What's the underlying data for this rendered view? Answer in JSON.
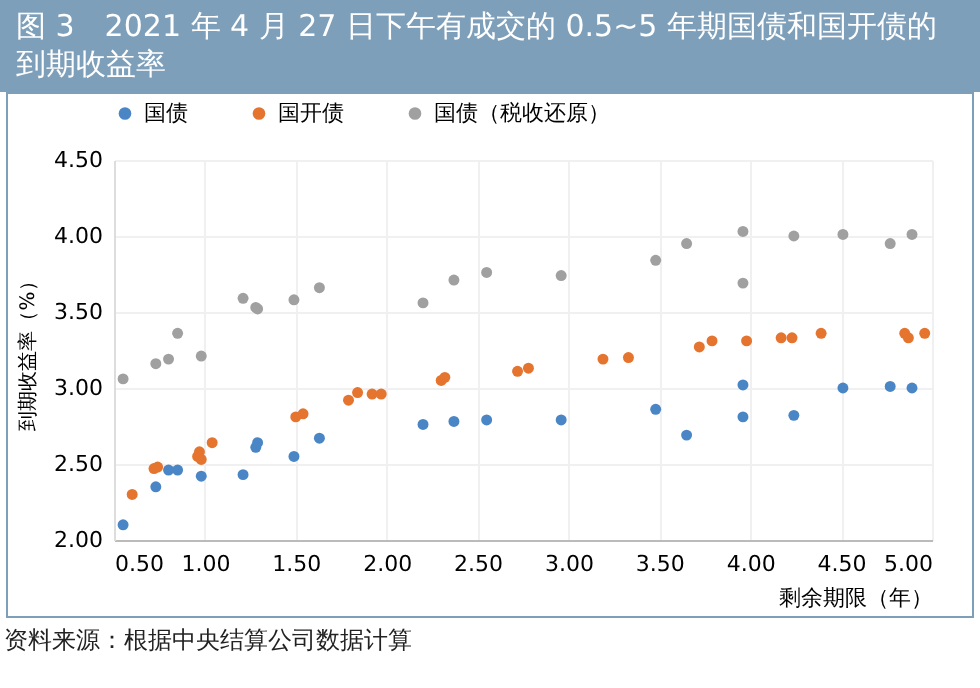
{
  "chart_data": {
    "type": "scatter",
    "title": "图 3　2021 年 4 月 27 日下午有成交的 0.5~5 年期国债和国开债的到期收益率",
    "xlabel": "剩余期限（年）",
    "ylabel": "到期收益率（%）",
    "annotations": [
      "资料来源：根据中央结算公司数据计算"
    ],
    "xlim": [
      0.5,
      5.0
    ],
    "ylim": [
      2.0,
      4.5
    ],
    "xticks": [
      {
        "value": 0.5,
        "label": "0.50"
      },
      {
        "value": 1,
        "label": "1.00"
      },
      {
        "value": 1.5,
        "label": "1.50"
      },
      {
        "value": 2,
        "label": "2.00"
      },
      {
        "value": 2.5,
        "label": "2.50"
      },
      {
        "value": 3,
        "label": "3.00"
      },
      {
        "value": 3.5,
        "label": "3.50"
      },
      {
        "value": 4,
        "label": "4.00"
      },
      {
        "value": 4.5,
        "label": "4.50"
      },
      {
        "value": 5,
        "label": "5.00"
      }
    ],
    "yticks": [
      {
        "value": 2,
        "label": "2.00"
      },
      {
        "value": 2.5,
        "label": "2.50"
      },
      {
        "value": 3,
        "label": "3.00"
      },
      {
        "value": 3.5,
        "label": "3.50"
      },
      {
        "value": 4,
        "label": "4.00"
      },
      {
        "value": 4.5,
        "label": "4.50"
      }
    ],
    "grid": true,
    "legend": "top",
    "marker": "circle",
    "series": [
      {
        "name": "国债",
        "color": "#4a86c5",
        "x": [
          0.55,
          0.73,
          0.8,
          0.85,
          0.98,
          1.21,
          1.28,
          1.29,
          1.49,
          1.63,
          2.2,
          2.37,
          2.55,
          2.96,
          3.48,
          3.65,
          3.96,
          3.96,
          4.24,
          4.51,
          4.77,
          4.89
        ],
        "values": [
          2.1,
          2.35,
          2.46,
          2.46,
          2.42,
          2.43,
          2.61,
          2.64,
          2.55,
          2.67,
          2.76,
          2.78,
          2.79,
          2.79,
          2.86,
          2.69,
          3.02,
          2.81,
          2.82,
          3.0,
          3.01,
          3.0
        ]
      },
      {
        "name": "国开债",
        "color": "#e5742f",
        "x": [
          0.6,
          0.72,
          0.74,
          0.96,
          0.97,
          0.98,
          1.04,
          1.5,
          1.54,
          1.79,
          1.84,
          1.92,
          1.97,
          2.3,
          2.32,
          2.72,
          2.78,
          3.19,
          3.33,
          3.72,
          3.79,
          3.98,
          4.17,
          4.23,
          4.39,
          4.85,
          4.87,
          4.96
        ],
        "values": [
          2.3,
          2.47,
          2.48,
          2.55,
          2.58,
          2.53,
          2.64,
          2.81,
          2.83,
          2.92,
          2.97,
          2.96,
          2.96,
          3.05,
          3.07,
          3.11,
          3.13,
          3.19,
          3.2,
          3.27,
          3.31,
          3.31,
          3.33,
          3.33,
          3.36,
          3.36,
          3.33,
          3.36
        ]
      },
      {
        "name": "国债（税收还原）",
        "color": "#a0a0a0",
        "x": [
          0.55,
          0.73,
          0.8,
          0.85,
          0.98,
          1.21,
          1.28,
          1.29,
          1.49,
          1.63,
          2.2,
          2.37,
          2.55,
          2.96,
          3.48,
          3.65,
          3.96,
          3.96,
          4.24,
          4.51,
          4.77,
          4.89
        ],
        "values": [
          3.06,
          3.16,
          3.19,
          3.36,
          3.21,
          3.59,
          3.53,
          3.52,
          3.58,
          3.66,
          3.56,
          3.71,
          3.76,
          3.74,
          3.84,
          3.95,
          4.03,
          3.69,
          4.0,
          4.01,
          3.95,
          4.01
        ]
      }
    ]
  }
}
